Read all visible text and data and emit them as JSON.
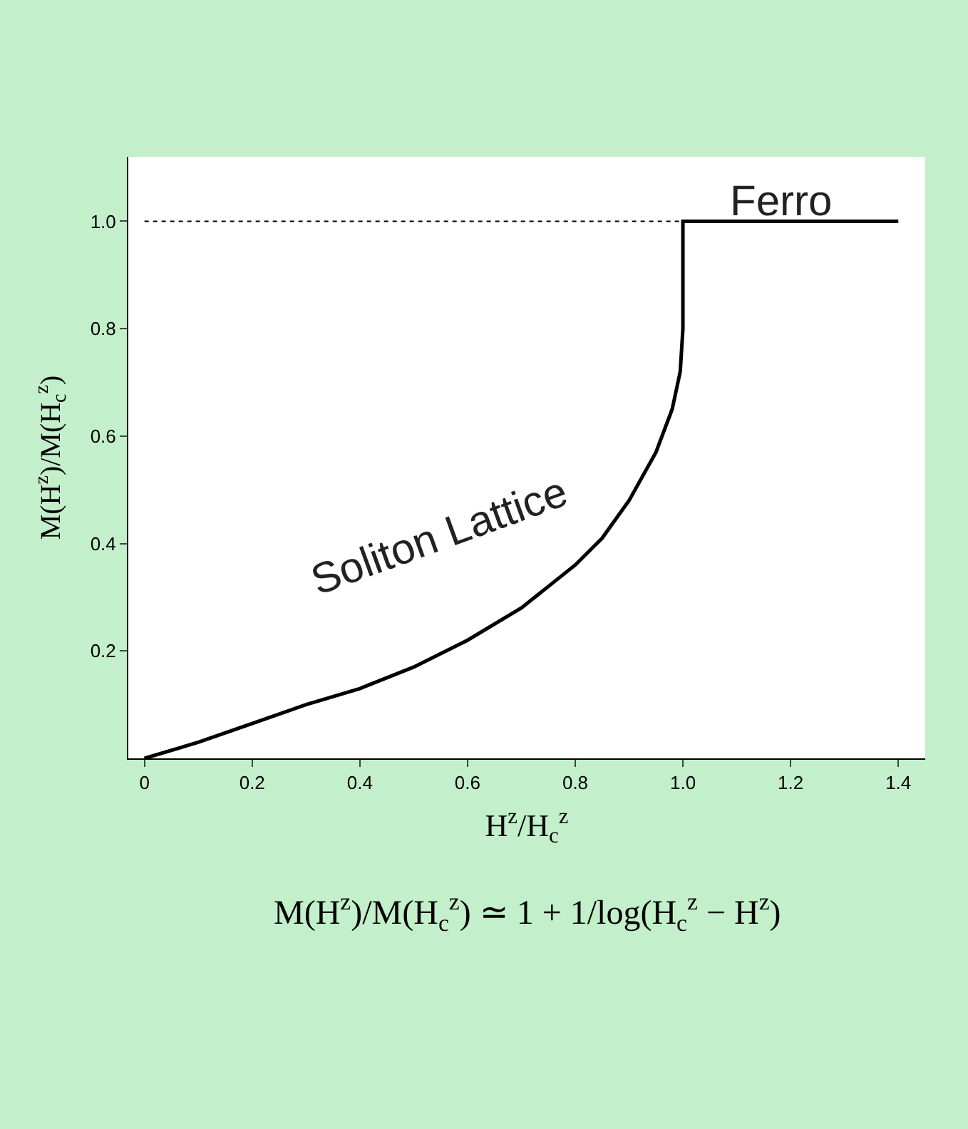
{
  "chart_data": {
    "type": "line",
    "x": [
      0,
      0.1,
      0.2,
      0.3,
      0.4,
      0.5,
      0.6,
      0.7,
      0.8,
      0.85,
      0.9,
      0.95,
      0.98,
      0.995,
      1.0,
      1.0,
      1.2,
      1.4
    ],
    "series": [
      {
        "color": "#000000",
        "values": [
          0,
          0.03,
          0.065,
          0.1,
          0.13,
          0.17,
          0.22,
          0.28,
          0.36,
          0.41,
          0.48,
          0.57,
          0.65,
          0.72,
          0.8,
          1.0,
          1.0,
          1.0
        ]
      }
    ],
    "xlabel": "H$^{z}$/H$_{c}$$^{z}$",
    "ylabel": "M(H$^{z}$)/M(H$_{c}$$^{z}$)",
    "xlim": [
      -0.03,
      1.45
    ],
    "ylim": [
      0,
      1.12
    ],
    "xticks": [
      0,
      0.2,
      0.4,
      0.6,
      0.8,
      {
        "value": 1,
        "label": "1.0"
      },
      1.2,
      1.4
    ],
    "yticks": [
      0.2,
      0.4,
      0.6,
      0.8,
      {
        "value": 1,
        "label": "1.0"
      }
    ],
    "ref_lines": [
      {
        "axis": "y",
        "value": 1,
        "label": null,
        "line_style": "dotted",
        "color": "#000000"
      }
    ],
    "annotations": [
      "Soliton Lattice",
      "Ferro",
      "M(H$^{z}$)/M(H$_{c}$$^{z}$) ≃ 1 + 1/log(H$_{c}$$^{z}$ − H$^{z}$)"
    ],
    "grid": false,
    "legend": false,
    "marker": "none",
    "line_style": "solid"
  }
}
